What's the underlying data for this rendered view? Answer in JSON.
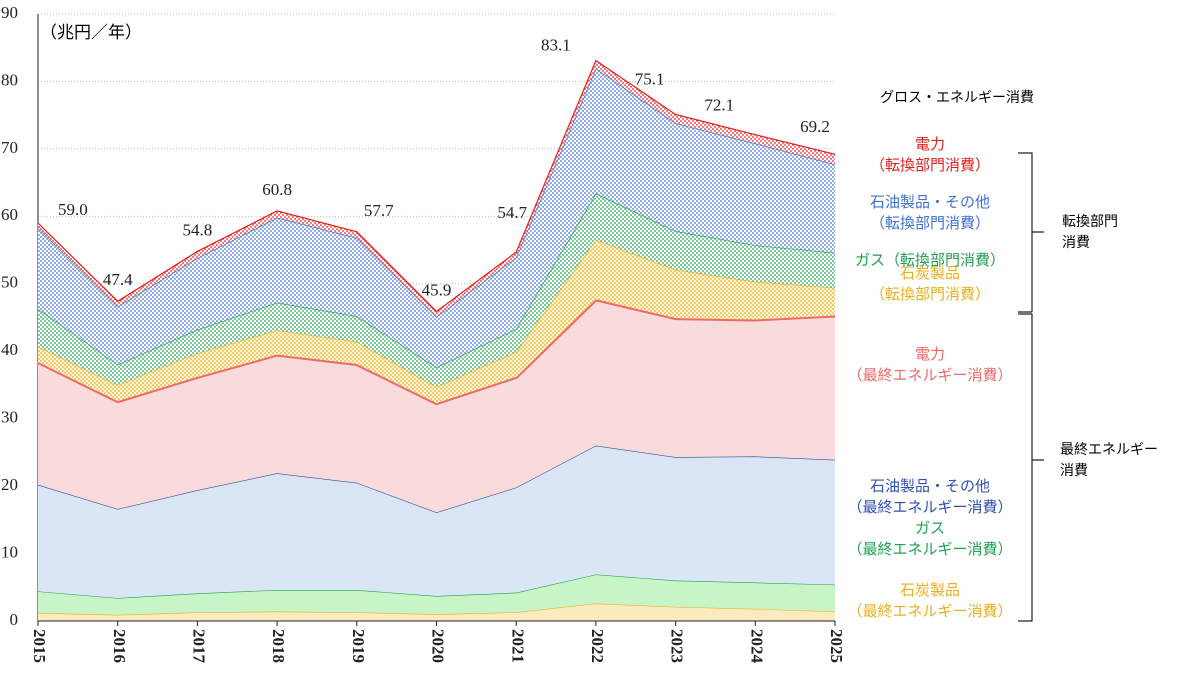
{
  "chart_data": {
    "type": "stacked-area",
    "unit_label": "（兆円／年）",
    "x": [
      2015,
      2016,
      2017,
      2018,
      2019,
      2020,
      2021,
      2022,
      2023,
      2024,
      2025
    ],
    "xlim": [
      2015,
      2025
    ],
    "xticks": [
      2015,
      2016,
      2017,
      2018,
      2019,
      2020,
      2021,
      2022,
      2023,
      2024,
      2025
    ],
    "ylim": [
      0,
      90
    ],
    "yticks": [
      0,
      10,
      20,
      30,
      40,
      50,
      60,
      70,
      80,
      90
    ],
    "grid": true,
    "series": [
      {
        "name": "石炭製品\n（最終エネルギー消費）",
        "color": "#e8b020",
        "fill_color": "#fdebc0",
        "fill": "solid",
        "values": [
          1.2,
          0.9,
          1.3,
          1.4,
          1.3,
          1.0,
          1.3,
          2.6,
          2.1,
          1.8,
          1.4
        ]
      },
      {
        "name": "ガス\n（最終エネルギー消費）",
        "color": "#20a050",
        "fill_color": "#c8f5c8",
        "fill": "solid",
        "values": [
          3.2,
          2.5,
          2.8,
          3.2,
          3.3,
          2.7,
          2.9,
          4.3,
          3.9,
          3.9,
          4.0
        ]
      },
      {
        "name": "石油製品・その他\n（最終エネルギー消費）",
        "color": "#3050b0",
        "fill_color": "#dbe6f4",
        "fill": "solid",
        "values": [
          15.8,
          13.2,
          15.3,
          17.3,
          15.9,
          12.4,
          15.6,
          19.1,
          18.3,
          18.7,
          18.5
        ]
      },
      {
        "name": "電力\n（最終エネルギー消費）",
        "color": "#ee6a6a",
        "fill_color": "#fadbdc",
        "fill": "solid",
        "values": [
          18.2,
          16.0,
          16.8,
          17.6,
          17.6,
          16.2,
          16.4,
          21.7,
          20.6,
          20.3,
          21.4
        ]
      },
      {
        "name": "石炭製品\n（転換部門消費）",
        "color": "#e8b020",
        "fill_color": "#fff5d8",
        "fill": "dots",
        "values": [
          2.3,
          2.4,
          3.5,
          3.6,
          3.3,
          2.4,
          3.7,
          8.8,
          7.2,
          5.6,
          4.1
        ]
      },
      {
        "name": "ガス（転換部門消費）",
        "color": "#20a050",
        "fill_color": "#ffffff",
        "fill": "dots",
        "values": [
          5.6,
          3.0,
          3.5,
          4.1,
          3.8,
          2.9,
          3.4,
          6.9,
          5.7,
          5.4,
          5.2
        ]
      },
      {
        "name": "石油製品・その他\n（転換部門消費）",
        "color": "#4070d0",
        "fill_color": "#ffffff",
        "fill": "dots",
        "values": [
          12.0,
          8.6,
          10.6,
          12.6,
          11.6,
          7.5,
          10.6,
          18.5,
          16.0,
          15.1,
          13.1
        ]
      },
      {
        "name": "電力\n（転換部門消費）",
        "color": "#e02020",
        "fill_color": "#ffffff",
        "fill": "dots",
        "values": [
          0.7,
          0.8,
          1.0,
          1.0,
          0.9,
          0.8,
          0.8,
          1.2,
          1.3,
          1.3,
          1.5
        ]
      }
    ],
    "totals": {
      "values": [
        59.0,
        47.4,
        54.8,
        60.8,
        57.7,
        45.9,
        54.7,
        83.1,
        75.1,
        72.1,
        69.2
      ],
      "value_labels": [
        "59.0",
        "47.4",
        "54.8",
        "60.8",
        "57.7",
        "45.9",
        "54.7",
        "83.1",
        "75.1",
        "72.1",
        "69.2"
      ]
    },
    "gross_label": "グロス・エネルギー消費",
    "bracket_labels": [
      "転換部門\n消費",
      "最終エネルギー\n消費"
    ]
  }
}
